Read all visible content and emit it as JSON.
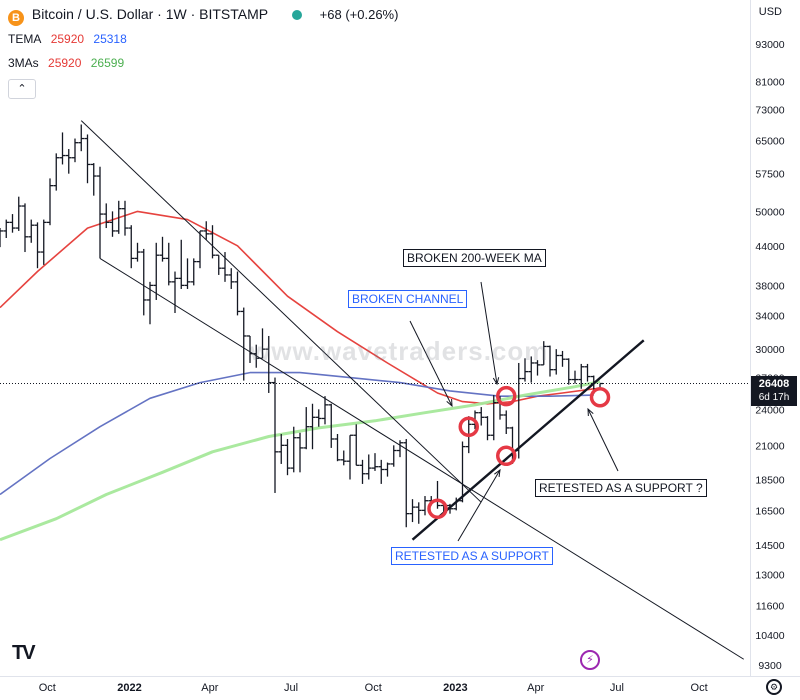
{
  "header": {
    "symbol_badge": "B",
    "title": "Bitcoin / U.S. Dollar · 1W · BITSTAMP",
    "change": "+68 (+0.26%)",
    "currency": "USD"
  },
  "indicators": [
    {
      "name": "TEMA",
      "values": [
        {
          "text": "25920",
          "color": "#e53935"
        },
        {
          "text": "25318",
          "color": "#2962ff"
        }
      ]
    },
    {
      "name": "3MAs",
      "values": [
        {
          "text": "25920",
          "color": "#e53935"
        },
        {
          "text": "26599",
          "color": "#4caf50"
        }
      ]
    }
  ],
  "price_tag": {
    "price": "26408",
    "countdown": "6d 17h"
  },
  "watermark": "www.wavetraders.com",
  "icons": {
    "collapse": "chevron-up-icon",
    "brand": "tradingview-logo-icon",
    "flash": "lightning-icon",
    "settings": "gear-icon"
  },
  "collapse_label": "⌃",
  "brand_label": "TV",
  "flash_label": "⚡",
  "settings_label": "⚙",
  "colors": {
    "up": "#131722",
    "red_ma": "#e53935",
    "blue_ma": "#5c6bc0",
    "green_ma": "#a5e89a",
    "circle": "#e53945"
  },
  "annotations": [
    {
      "text": "BROKEN 200-WEEK MA",
      "style": "black"
    },
    {
      "text": "BROKEN CHANNEL",
      "style": "blue"
    },
    {
      "text": "RETESTED AS A SUPPORT ?",
      "style": "black"
    },
    {
      "text": "RETESTED AS A SUPPORT",
      "style": "blue"
    }
  ],
  "chart_data": {
    "type": "ohlc",
    "title": "Bitcoin / U.S. Dollar · 1W · BITSTAMP",
    "y_scale": "log",
    "ylim": [
      9000,
      105000
    ],
    "y_ticks": [
      9300,
      10400,
      11600,
      13000,
      14500,
      16500,
      18500,
      21000,
      24000,
      27000,
      30000,
      34000,
      38000,
      44000,
      50000,
      57500,
      65000,
      73000,
      81000,
      93000
    ],
    "x_ticks": [
      "Oct",
      "2022",
      "Apr",
      "Jul",
      "Oct",
      "2023",
      "Apr",
      "Jul",
      "Oct"
    ],
    "x_tick_dates": [
      "2021-10-01",
      "2022-01-01",
      "2022-04-01",
      "2022-07-01",
      "2022-10-01",
      "2023-01-01",
      "2023-04-01",
      "2023-07-01",
      "2023-10-01"
    ],
    "xlim": [
      "2021-08-09",
      "2023-11-27"
    ],
    "close_line": 26408,
    "series": [
      {
        "name": "TEMA (red)",
        "color": "#e53935",
        "points": [
          [
            "2021-08-09",
            35000
          ],
          [
            "2021-09-20",
            40000
          ],
          [
            "2021-11-15",
            47000
          ],
          [
            "2022-01-10",
            50000
          ],
          [
            "2022-03-07",
            48500
          ],
          [
            "2022-05-02",
            44000
          ],
          [
            "2022-06-27",
            36500
          ],
          [
            "2022-08-22",
            32000
          ],
          [
            "2022-10-17",
            28500
          ],
          [
            "2022-12-12",
            25500
          ],
          [
            "2023-01-09",
            24700
          ],
          [
            "2023-02-06",
            24500
          ],
          [
            "2023-03-06",
            24700
          ],
          [
            "2023-04-03",
            25200
          ],
          [
            "2023-05-01",
            25500
          ],
          [
            "2023-06-05",
            25900
          ]
        ]
      },
      {
        "name": "200-week MA (blue)",
        "color": "#5c6bc0",
        "points": [
          [
            "2021-08-09",
            17500
          ],
          [
            "2021-10-04",
            20000
          ],
          [
            "2021-11-29",
            22500
          ],
          [
            "2022-01-24",
            25000
          ],
          [
            "2022-03-21",
            26500
          ],
          [
            "2022-05-16",
            27500
          ],
          [
            "2022-07-11",
            27500
          ],
          [
            "2022-09-05",
            27000
          ],
          [
            "2022-10-31",
            26500
          ],
          [
            "2022-12-26",
            25700
          ],
          [
            "2023-02-20",
            25200
          ],
          [
            "2023-04-17",
            25200
          ],
          [
            "2023-06-05",
            25300
          ]
        ]
      },
      {
        "name": "MA (green)",
        "color": "#a5e89a",
        "points": [
          [
            "2021-08-09",
            14800
          ],
          [
            "2021-10-11",
            16000
          ],
          [
            "2021-12-06",
            17500
          ],
          [
            "2022-02-07",
            19000
          ],
          [
            "2022-04-04",
            20500
          ],
          [
            "2022-06-06",
            21700
          ],
          [
            "2022-08-01",
            22400
          ],
          [
            "2022-10-03",
            23000
          ],
          [
            "2022-11-28",
            23700
          ],
          [
            "2023-01-23",
            24400
          ],
          [
            "2023-03-20",
            25300
          ],
          [
            "2023-05-15",
            26100
          ],
          [
            "2023-06-12",
            26600
          ]
        ]
      }
    ],
    "ohlc": [
      [
        "2021-08-09",
        44500,
        47000,
        43800,
        46500
      ],
      [
        "2021-08-16",
        46500,
        48500,
        45300,
        48000
      ],
      [
        "2021-08-23",
        48000,
        49500,
        46200,
        47000
      ],
      [
        "2021-08-30",
        47000,
        52800,
        46500,
        51000
      ],
      [
        "2021-09-06",
        51000,
        51500,
        43000,
        45500
      ],
      [
        "2021-09-13",
        45500,
        48500,
        44500,
        47500
      ],
      [
        "2021-09-20",
        47500,
        48000,
        40500,
        43000
      ],
      [
        "2021-09-27",
        43000,
        48500,
        41000,
        48000
      ],
      [
        "2021-10-04",
        48000,
        56500,
        47500,
        55000
      ],
      [
        "2021-10-11",
        55000,
        62000,
        54000,
        61000
      ],
      [
        "2021-10-18",
        61000,
        67000,
        59500,
        61500
      ],
      [
        "2021-10-25",
        61500,
        63000,
        57500,
        61000
      ],
      [
        "2021-11-01",
        61000,
        65500,
        60000,
        64500
      ],
      [
        "2021-11-08",
        64500,
        69000,
        62500,
        65500
      ],
      [
        "2021-11-15",
        65500,
        66500,
        55500,
        59500
      ],
      [
        "2021-11-22",
        59500,
        59800,
        53000,
        57000
      ],
      [
        "2021-11-29",
        57000,
        59000,
        42000,
        49500
      ],
      [
        "2021-12-06",
        49500,
        51500,
        47000,
        48000
      ],
      [
        "2021-12-13",
        48000,
        50000,
        45500,
        46500
      ],
      [
        "2021-12-20",
        46500,
        52000,
        46000,
        50500
      ],
      [
        "2021-12-27",
        50500,
        52000,
        45700,
        47000
      ],
      [
        "2022-01-03",
        47000,
        47500,
        40500,
        42000
      ],
      [
        "2022-01-10",
        42000,
        44500,
        41500,
        43000
      ],
      [
        "2022-01-17",
        43000,
        43500,
        34000,
        36000
      ],
      [
        "2022-01-24",
        36000,
        38500,
        32900,
        38000
      ],
      [
        "2022-01-31",
        38000,
        44500,
        36000,
        42500
      ],
      [
        "2022-02-07",
        42500,
        45500,
        41500,
        42000
      ],
      [
        "2022-02-14",
        42000,
        44500,
        38000,
        38500
      ],
      [
        "2022-02-21",
        38500,
        40000,
        34300,
        39000
      ],
      [
        "2022-02-28",
        39000,
        45000,
        37500,
        38000
      ],
      [
        "2022-03-07",
        38000,
        42000,
        37500,
        38500
      ],
      [
        "2022-03-14",
        38500,
        42000,
        38000,
        41500
      ],
      [
        "2022-03-21",
        41500,
        46500,
        40500,
        46500
      ],
      [
        "2022-03-28",
        46500,
        48200,
        45000,
        46000
      ],
      [
        "2022-04-04",
        46000,
        47500,
        42000,
        42500
      ],
      [
        "2022-04-11",
        42500,
        42500,
        39500,
        40500
      ],
      [
        "2022-04-18",
        40500,
        43000,
        38500,
        39500
      ],
      [
        "2022-04-25",
        39500,
        40500,
        37500,
        38500
      ],
      [
        "2022-05-02",
        38500,
        40000,
        34000,
        34500
      ],
      [
        "2022-05-09",
        34500,
        35000,
        26700,
        31500
      ],
      [
        "2022-05-16",
        31500,
        31500,
        28500,
        29500
      ],
      [
        "2022-05-23",
        29500,
        30500,
        28000,
        29000
      ],
      [
        "2022-05-30",
        29000,
        32400,
        29000,
        30000
      ],
      [
        "2022-06-06",
        30000,
        31500,
        25500,
        26500
      ],
      [
        "2022-06-13",
        26500,
        27000,
        17600,
        20500
      ],
      [
        "2022-06-20",
        20500,
        21900,
        19600,
        21000
      ],
      [
        "2022-06-27",
        21000,
        21500,
        18800,
        19300
      ],
      [
        "2022-07-04",
        19300,
        22500,
        19000,
        21600
      ],
      [
        "2022-07-11",
        21600,
        22000,
        19000,
        20800
      ],
      [
        "2022-07-18",
        20800,
        24200,
        20700,
        22500
      ],
      [
        "2022-07-25",
        22500,
        24500,
        20700,
        23300
      ],
      [
        "2022-08-01",
        23300,
        24000,
        22500,
        23200
      ],
      [
        "2022-08-08",
        23200,
        25200,
        22700,
        24400
      ],
      [
        "2022-08-15",
        24400,
        24500,
        20800,
        21500
      ],
      [
        "2022-08-22",
        21500,
        21900,
        19800,
        19900
      ],
      [
        "2022-08-29",
        19900,
        20600,
        19500,
        19800
      ],
      [
        "2022-09-05",
        19800,
        21800,
        18500,
        21800
      ],
      [
        "2022-09-12",
        21800,
        22700,
        19500,
        19500
      ],
      [
        "2022-09-19",
        19500,
        19900,
        18200,
        18900
      ],
      [
        "2022-09-26",
        18900,
        20300,
        18500,
        19300
      ],
      [
        "2022-10-03",
        19300,
        20400,
        19100,
        19400
      ],
      [
        "2022-10-10",
        19400,
        19900,
        18200,
        19200
      ],
      [
        "2022-10-17",
        19200,
        19700,
        18700,
        19600
      ],
      [
        "2022-10-24",
        19600,
        21000,
        19400,
        20600
      ],
      [
        "2022-10-31",
        20600,
        21400,
        20100,
        21200
      ],
      [
        "2022-11-07",
        21200,
        21500,
        15500,
        16300
      ],
      [
        "2022-11-14",
        16300,
        17200,
        15800,
        16700
      ],
      [
        "2022-11-21",
        16700,
        17000,
        15700,
        16500
      ],
      [
        "2022-11-28",
        16500,
        17400,
        16200,
        17100
      ],
      [
        "2022-12-05",
        17100,
        17400,
        16800,
        17100
      ],
      [
        "2022-12-12",
        17100,
        18400,
        16600,
        16800
      ],
      [
        "2022-12-19",
        16800,
        16950,
        16400,
        16800
      ],
      [
        "2022-12-26",
        16800,
        16900,
        16300,
        16600
      ],
      [
        "2023-01-02",
        16600,
        17300,
        16500,
        17100
      ],
      [
        "2023-01-09",
        17100,
        21300,
        17000,
        20900
      ],
      [
        "2023-01-16",
        20900,
        23400,
        20400,
        22700
      ],
      [
        "2023-01-23",
        22700,
        23900,
        22300,
        23700
      ],
      [
        "2023-01-30",
        23700,
        24200,
        22600,
        23300
      ],
      [
        "2023-02-06",
        23300,
        23400,
        21400,
        21800
      ],
      [
        "2023-02-13",
        21800,
        25300,
        21400,
        24600
      ],
      [
        "2023-02-20",
        24600,
        25200,
        23100,
        23500
      ],
      [
        "2023-02-27",
        23500,
        23900,
        21900,
        22400
      ],
      [
        "2023-03-06",
        22400,
        22500,
        19600,
        20600
      ],
      [
        "2023-03-13",
        20600,
        28500,
        20000,
        26900
      ],
      [
        "2023-03-20",
        26900,
        29000,
        26600,
        27600
      ],
      [
        "2023-03-27",
        27600,
        29200,
        26500,
        28500
      ],
      [
        "2023-04-03",
        28500,
        28800,
        27200,
        28300
      ],
      [
        "2023-04-10",
        28300,
        30900,
        28300,
        30300
      ],
      [
        "2023-04-17",
        30300,
        30400,
        27100,
        27800
      ],
      [
        "2023-04-24",
        27800,
        30000,
        27300,
        29300
      ],
      [
        "2023-05-01",
        29300,
        29800,
        28100,
        28900
      ],
      [
        "2023-05-08",
        28900,
        29000,
        26300,
        26800
      ],
      [
        "2023-05-15",
        26800,
        27700,
        26400,
        26800
      ],
      [
        "2023-05-22",
        26800,
        28400,
        25900,
        28100
      ],
      [
        "2023-05-29",
        28100,
        28400,
        26600,
        27100
      ],
      [
        "2023-06-05",
        27100,
        27200,
        25400,
        25900
      ],
      [
        "2023-06-12",
        25900,
        26400,
        25800,
        26408
      ]
    ],
    "annotations_geometry_note": "",
    "channel_upper": [
      [
        "2021-11-08",
        70000
      ],
      [
        "2023-01-30",
        17000
      ]
    ],
    "channel_lower": [
      [
        "2021-11-29",
        42000
      ],
      [
        "2023-11-20",
        9500
      ]
    ],
    "support_line": [
      [
        "2022-11-14",
        14800
      ],
      [
        "2023-07-31",
        31000
      ]
    ],
    "circles": [
      [
        "2022-12-12",
        16600
      ],
      [
        "2023-01-16",
        22500
      ],
      [
        "2023-02-27",
        25200
      ],
      [
        "2023-02-27",
        20200
      ],
      [
        "2023-06-12",
        25100
      ]
    ]
  }
}
